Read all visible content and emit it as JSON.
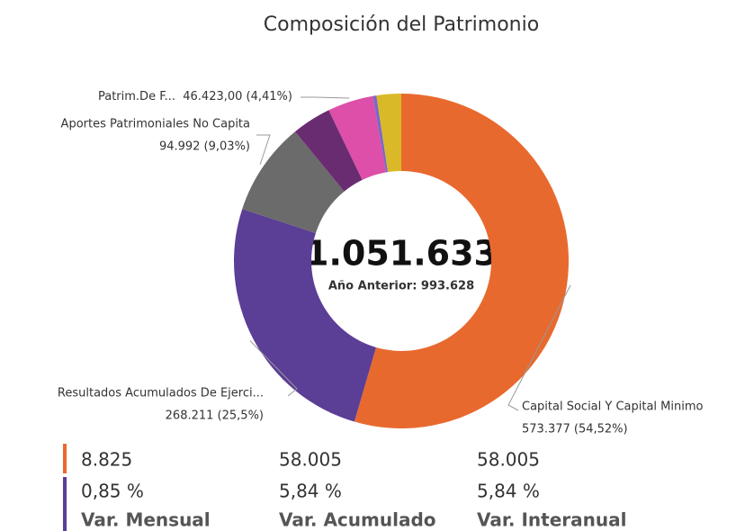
{
  "chart_data": {
    "type": "donut",
    "title": "Composición del Patrimonio",
    "categories": [
      "Capital Social Y Capital Minimo",
      "Resultados Acumulados De Ejerci...",
      "Aportes Patrimoniales No Capita",
      null,
      "Patrim.De F...",
      null,
      null
    ],
    "values": [
      573377,
      268211,
      94992,
      40000,
      46423,
      3630,
      25000
    ],
    "value_labels": [
      "573.377 (54,52%)",
      "268.211 (25,5%)",
      "94.992 (9,03%)",
      null,
      "46.423,00 (4,41%)",
      null,
      null
    ],
    "colors": [
      "#e8692e",
      "#5b3e96",
      "#6b6b6b",
      "#6a2c70",
      "#dd4fa8",
      "#7b68c8",
      "#d9b928"
    ],
    "center_value": "1.051.633",
    "center_subtitle": "Año Anterior: 993.628"
  },
  "kpi_table": {
    "rows": [
      [
        "8.825",
        "58.005",
        "58.005"
      ],
      [
        "0,85 %",
        "5,84 %",
        "5,84 %"
      ],
      [
        "Var. Mensual",
        "Var. Acumulado",
        "Var. Interanual"
      ]
    ]
  }
}
